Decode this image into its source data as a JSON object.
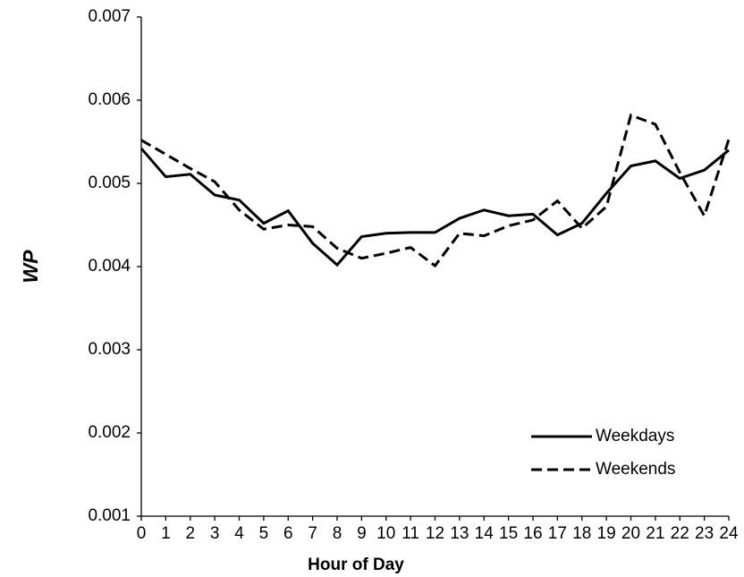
{
  "chart_data": {
    "type": "line",
    "x_label": "Hour of Day",
    "y_label": "WP",
    "x": [
      0,
      1,
      2,
      3,
      4,
      5,
      6,
      7,
      8,
      9,
      10,
      11,
      12,
      13,
      14,
      15,
      16,
      17,
      18,
      19,
      20,
      21,
      22,
      23,
      24
    ],
    "series": [
      {
        "name": "Weekdays",
        "color": "#000000",
        "dash": "solid",
        "values": [
          0.00542,
          0.00508,
          0.00511,
          0.00486,
          0.0048,
          0.00452,
          0.00467,
          0.00428,
          0.00402,
          0.00436,
          0.0044,
          0.00441,
          0.00441,
          0.00458,
          0.00468,
          0.00461,
          0.00463,
          0.00438,
          0.00452,
          0.00488,
          0.00521,
          0.00527,
          0.00506,
          0.00516,
          0.0054
        ]
      },
      {
        "name": "Weekends",
        "color": "#000000",
        "dash": "dashed",
        "values": [
          0.00552,
          0.00535,
          0.00518,
          0.00502,
          0.00468,
          0.00445,
          0.0045,
          0.00448,
          0.00422,
          0.0041,
          0.00416,
          0.00423,
          0.00401,
          0.0044,
          0.00437,
          0.00449,
          0.00456,
          0.00479,
          0.00446,
          0.00472,
          0.00582,
          0.00571,
          0.00513,
          0.00461,
          0.00553
        ]
      }
    ],
    "xlim": [
      0,
      24
    ],
    "xticks": [
      0,
      1,
      2,
      3,
      4,
      5,
      6,
      7,
      8,
      9,
      10,
      11,
      12,
      13,
      14,
      15,
      16,
      17,
      18,
      19,
      20,
      21,
      22,
      23,
      24
    ],
    "ylim": [
      0.001,
      0.007
    ],
    "yticks": [
      0.001,
      0.002,
      0.003,
      0.004,
      0.005,
      0.006,
      0.007
    ],
    "grid": false,
    "legend": "lower right"
  }
}
